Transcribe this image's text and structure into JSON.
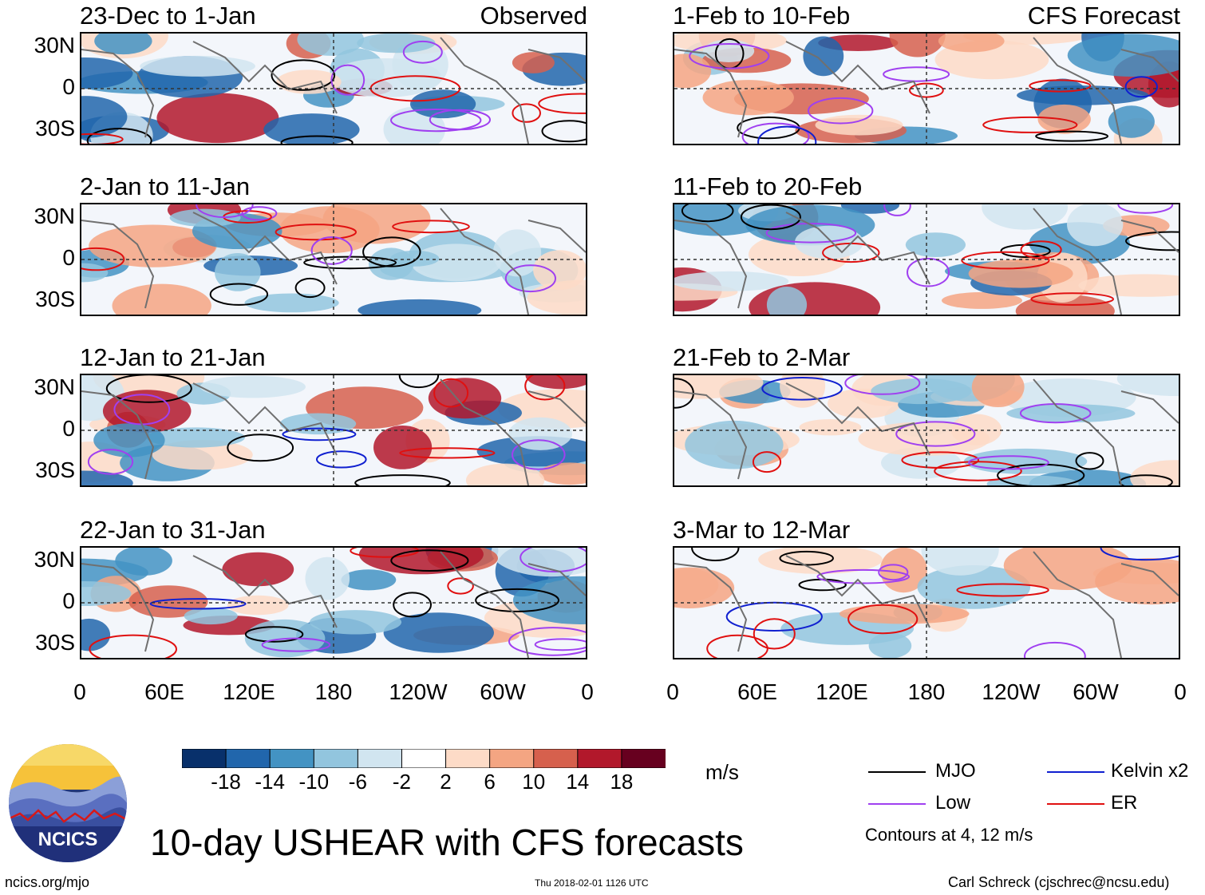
{
  "chart_data": {
    "type": "heatmap",
    "title": "10-day USHEAR with CFS forecasts",
    "units": "m/s",
    "x_ticks": [
      "0",
      "60E",
      "120E",
      "180",
      "120W",
      "60W",
      "0"
    ],
    "y_ticks": [
      "30N",
      "0",
      "30S"
    ],
    "observed_label": "Observed",
    "forecast_label": "CFS Forecast",
    "panels": [
      {
        "title": "23-Dec to 1-Jan",
        "column": "observed"
      },
      {
        "title": "2-Jan to 11-Jan",
        "column": "observed"
      },
      {
        "title": "12-Jan to 21-Jan",
        "column": "observed"
      },
      {
        "title": "22-Jan to 31-Jan",
        "column": "observed"
      },
      {
        "title": "1-Feb to 10-Feb",
        "column": "forecast"
      },
      {
        "title": "11-Feb to 20-Feb",
        "column": "forecast"
      },
      {
        "title": "21-Feb to 2-Mar",
        "column": "forecast"
      },
      {
        "title": "3-Mar to 12-Mar",
        "column": "forecast"
      }
    ],
    "colorbar": {
      "labels": [
        "-18",
        "-14",
        "-10",
        "-6",
        "-2",
        "2",
        "6",
        "10",
        "14",
        "18"
      ],
      "colors": [
        "#08306b",
        "#2166ac",
        "#4393c3",
        "#92c5de",
        "#d1e5f0",
        "#ffffff",
        "#fddbc7",
        "#f4a582",
        "#d6604d",
        "#b2182b",
        "#67001f"
      ]
    },
    "legend": [
      {
        "label": "MJO",
        "color": "#000000"
      },
      {
        "label": "Kelvin x2",
        "color": "#1020d0"
      },
      {
        "label": "Low",
        "color": "#a040f0"
      },
      {
        "label": "ER",
        "color": "#e01010"
      }
    ],
    "contour_note": "Contours at 4, 12 m/s"
  },
  "footer": {
    "logo_text": "NCICS",
    "site": "ncics.org/mjo",
    "timestamp": "Thu 2018-02-01 1126 UTC",
    "author": "Carl Schreck (cjschrec@ncsu.edu)"
  }
}
